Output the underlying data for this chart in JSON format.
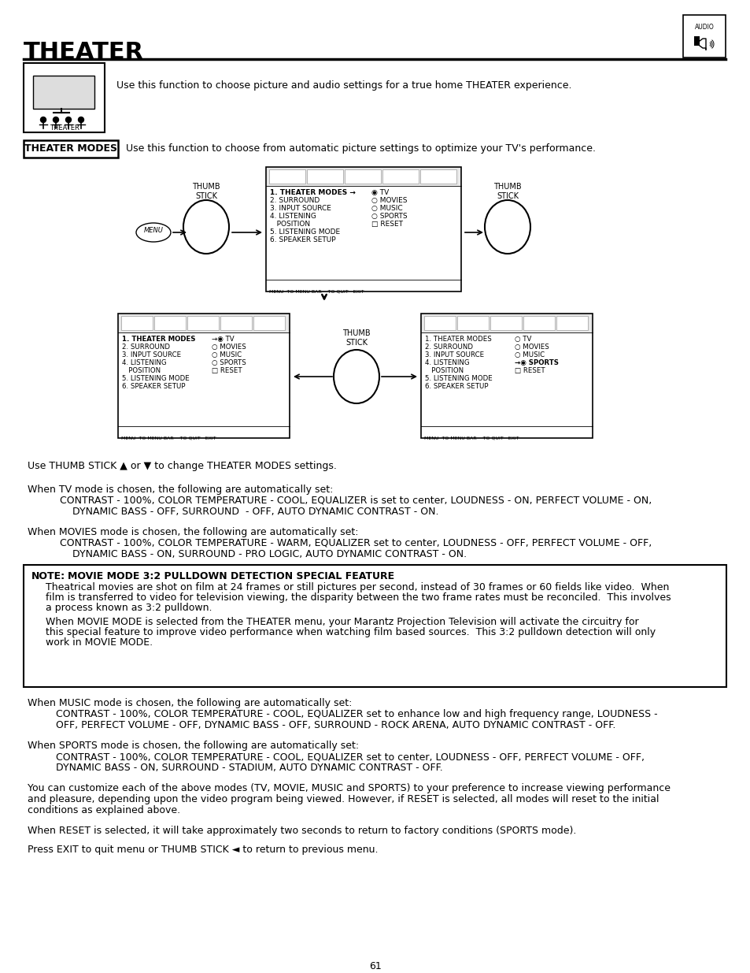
{
  "title": "THEATER",
  "page_number": "61",
  "bg_color": "#ffffff",
  "text_color": "#000000",
  "title_fontsize": 22,
  "body_fontsize": 9,
  "small_fontsize": 7.5,
  "theater_intro": "Use this function to choose picture and audio settings for a true home THEATER experience.",
  "theater_modes_label": "THEATER MODES",
  "theater_modes_desc": "Use this function to choose from automatic picture settings to optimize your TV's performance.",
  "menu_items_top": [
    "1. THEATER MODES →",
    "2. SURROUND",
    "3. INPUT SOURCE",
    "4. LISTENING",
    "   POSITION",
    "5. LISTENING MODE",
    "6. SPEAKER SETUP"
  ],
  "menu_options_top": [
    "◉ TV",
    "○ MOVIES",
    "○ MUSIC",
    "○ SPORTS",
    "□ RESET"
  ],
  "menu_items_bottom_left": [
    "1. THEATER MODES",
    "2. SURROUND",
    "3. INPUT SOURCE",
    "4. LISTENING",
    "   POSITION",
    "5. LISTENING MODE",
    "6. SPEAKER SETUP"
  ],
  "menu_options_bottom_left": [
    "→◉ TV",
    "○ MOVIES",
    "○ MUSIC",
    "○ SPORTS",
    "□ RESET"
  ],
  "menu_items_bottom_right": [
    "1. THEATER MODES",
    "2. SURROUND",
    "3. INPUT SOURCE",
    "4. LISTENING",
    "   POSITION",
    "5. LISTENING MODE",
    "6. SPEAKER SETUP"
  ],
  "menu_options_bottom_right": [
    "○ TV",
    "○ MOVIES",
    "○ MUSIC",
    "→◉ SPORTS",
    "□ RESET"
  ],
  "para1_line1": "Use THUMB STICK ▲ or ▼ to change THEATER MODES settings.",
  "para2_line1": "When TV mode is chosen, the following are automatically set:",
  "para2_line2": "    CONTRAST - 100%, COLOR TEMPERATURE - COOL, EQUALIZER is set to center, LOUDNESS - ON, PERFECT VOLUME - ON,",
  "para2_line3": "        DYNAMIC BASS - OFF, SURROUND  - OFF, AUTO DYNAMIC CONTRAST - ON.",
  "para3_line1": "When MOVIES mode is chosen, the following are automatically set:",
  "para3_line2": "    CONTRAST - 100%, COLOR TEMPERATURE - WARM, EQUALIZER set to center, LOUDNESS - OFF, PERFECT VOLUME - OFF,",
  "para3_line3": "        DYNAMIC BASS - ON, SURROUND - PRO LOGIC, AUTO DYNAMIC CONTRAST - ON.",
  "note_bold": "MOVIE MODE 3:2 PULLDOWN DETECTION SPECIAL FEATURE",
  "note_p1_line1": "Theatrical movies are shot on film at 24 frames or still pictures per second, instead of 30 frames or 60 fields like video.  When",
  "note_p1_line2": "film is transferred to video for television viewing, the disparity between the two frame rates must be reconciled.  This involves",
  "note_p1_line3": "a process known as 3:2 pulldown.",
  "note_p2_line1": "When MOVIE MODE is selected from the THEATER menu, your Marantz Projection Television will activate the circuitry for",
  "note_p2_line2": "this special feature to improve video performance when watching film based sources.  This 3:2 pulldown detection will only",
  "note_p2_line3": "work in MOVIE MODE.",
  "para4_line1": "When MUSIC mode is chosen, the following are automatically set:",
  "para4_line2": "    CONTRAST - 100%, COLOR TEMPERATURE - COOL, EQUALIZER set to enhance low and high frequency range, LOUDNESS -",
  "para4_line3": "    OFF, PERFECT VOLUME - OFF, DYNAMIC BASS - OFF, SURROUND - ROCK ARENA, AUTO DYNAMIC CONTRAST - OFF.",
  "para5_line1": "When SPORTS mode is chosen, the following are automatically set:",
  "para5_line2": "    CONTRAST - 100%, COLOR TEMPERATURE - COOL, EQUALIZER set to center, LOUDNESS - OFF, PERFECT VOLUME - OFF,",
  "para5_line3": "    DYNAMIC BASS - ON, SURROUND - STADIUM, AUTO DYNAMIC CONTRAST - OFF.",
  "para6_line1": "You can customize each of the above modes (TV, MOVIE, MUSIC and SPORTS) to your preference to increase viewing performance",
  "para6_line2": "and pleasure, depending upon the video program being viewed. However, if RESET is selected, all modes will reset to the initial",
  "para6_line3": "conditions as explained above.",
  "para7_line1": "When RESET is selected, it will take approximately two seconds to return to factory conditions (SPORTS mode).",
  "para8_line1": "Press EXIT to quit menu or THUMB STICK ◄ to return to previous menu."
}
